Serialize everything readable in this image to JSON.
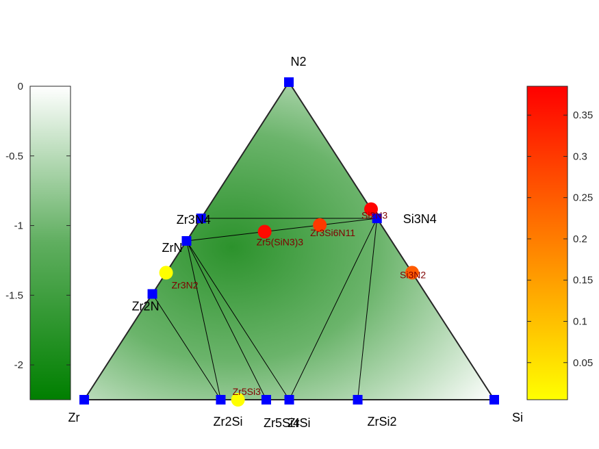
{
  "chart_data": {
    "type": "ternary-phase-diagram",
    "vertices": {
      "top": "N2",
      "left": "Zr",
      "right": "Si"
    },
    "stable_phases": [
      {
        "name": "N2",
        "n": 1.0,
        "si": 0.0,
        "energy": 0.0
      },
      {
        "name": "Zr",
        "n": 0.0,
        "si": 0.0,
        "energy": 0.0
      },
      {
        "name": "Si",
        "n": 0.0,
        "si": 1.0,
        "energy": 0.0
      },
      {
        "name": "Zr3N4",
        "n": 0.571,
        "si": 0.0,
        "energy": -0.95
      },
      {
        "name": "ZrN",
        "n": 0.5,
        "si": 0.0,
        "energy": -1.1
      },
      {
        "name": "Zr2N",
        "n": 0.333,
        "si": 0.0,
        "energy": -1.5
      },
      {
        "name": "Si3N4",
        "n": 0.571,
        "si": 0.429,
        "energy": -0.95
      },
      {
        "name": "Zr2Si",
        "n": 0.0,
        "si": 0.333,
        "energy": -0.7
      },
      {
        "name": "Zr5Si4",
        "n": 0.0,
        "si": 0.444,
        "energy": -0.8
      },
      {
        "name": "ZrSi",
        "n": 0.0,
        "si": 0.5,
        "energy": -0.8
      },
      {
        "name": "ZrSi2",
        "n": 0.0,
        "si": 0.667,
        "energy": -0.6
      }
    ],
    "tie_lines": [
      [
        "Zr3N4",
        "Si3N4"
      ],
      [
        "ZrN",
        "Si3N4"
      ],
      [
        "ZrN",
        "Zr2Si"
      ],
      [
        "ZrN",
        "Zr5Si4"
      ],
      [
        "ZrN",
        "ZrSi"
      ],
      [
        "Zr2N",
        "Zr2Si"
      ],
      [
        "Si3N4",
        "ZrSi"
      ],
      [
        "Si3N4",
        "ZrSi2"
      ]
    ],
    "unstable_phases": [
      {
        "name": "Si2N3",
        "n": 0.6,
        "si": 0.4,
        "e_above_hull": 0.38
      },
      {
        "name": "Zr5(SiN3)3",
        "n": 0.529,
        "si": 0.176,
        "e_above_hull": 0.37
      },
      {
        "name": "Zr3Si6N11",
        "n": 0.55,
        "si": 0.3,
        "e_above_hull": 0.3
      },
      {
        "name": "Si3N2",
        "n": 0.4,
        "si": 0.6,
        "e_above_hull": 0.25
      },
      {
        "name": "Zr3N2",
        "n": 0.4,
        "si": 0.0,
        "e_above_hull": 0.0
      },
      {
        "name": "Zr5Si3",
        "n": 0.0,
        "si": 0.375,
        "e_above_hull": 0.0
      }
    ],
    "left_colorbar": {
      "range": [
        -2.25,
        0
      ],
      "ticks": [
        0,
        -0.5,
        -1,
        -1.5,
        -2
      ],
      "tick_labels": [
        "0",
        "-0.5",
        "-1",
        "-1.5",
        "-2"
      ]
    },
    "right_colorbar": {
      "range": [
        0.005,
        0.385
      ],
      "ticks": [
        0.35,
        0.3,
        0.25,
        0.2,
        0.15,
        0.1,
        0.05
      ],
      "tick_labels": [
        "0.35",
        "0.3",
        "0.25",
        "0.2",
        "0.15",
        "0.1",
        "0.05"
      ]
    },
    "colors": {
      "stable_marker": "#0000ff",
      "green_dark": "#007f00",
      "cbar_high": "#ff0000",
      "cbar_low": "#ffff00"
    }
  }
}
